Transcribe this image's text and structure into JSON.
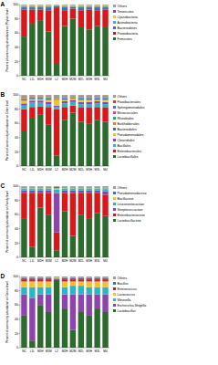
{
  "chart_data": [
    {
      "type": "bar",
      "stacked": true,
      "legend": "right",
      "title": "A",
      "y_label": "Percent of community abundance on Phylum level",
      "categories": [
        "NC",
        "L1L",
        "M1H",
        "M1M",
        "L2",
        "M2H",
        "M2M",
        "M2L",
        "M3H",
        "M3L",
        "M4"
      ],
      "ylim": [
        0,
        100
      ],
      "yticks": [
        0,
        20,
        40,
        60,
        80,
        100
      ],
      "series": [
        {
          "name": "Firmicutes",
          "color": "#2d6a2d",
          "values": [
            55,
            73,
            78,
            62,
            18,
            70,
            80,
            68,
            65,
            70,
            68
          ]
        },
        {
          "name": "Proteobacteria",
          "color": "#d7191c",
          "values": [
            38,
            20,
            15,
            30,
            78,
            22,
            14,
            24,
            28,
            22,
            25
          ]
        },
        {
          "name": "Bacteroidetes",
          "color": "#3b6fb6",
          "values": [
            3,
            3,
            3,
            4,
            2,
            4,
            3,
            4,
            3,
            4,
            3
          ]
        },
        {
          "name": "Actinobacteria",
          "color": "#2bb5c8",
          "values": [
            2,
            2,
            2,
            2,
            1,
            2,
            1,
            2,
            2,
            2,
            2
          ]
        },
        {
          "name": "Cyanobacteria",
          "color": "#f2c12e",
          "values": [
            1,
            1,
            1,
            1,
            0.5,
            1,
            1,
            1,
            1,
            1,
            1
          ]
        },
        {
          "name": "Tenericutes",
          "color": "#8e44ad",
          "values": [
            0.5,
            0.5,
            0.5,
            0.5,
            0.3,
            0.5,
            0.5,
            0.5,
            0.5,
            0.5,
            0.5
          ]
        },
        {
          "name": "Others",
          "color": "#9e9e9e",
          "values": [
            0.5,
            0.5,
            0.5,
            0.5,
            0.2,
            0.5,
            0.5,
            0.5,
            0.5,
            0.5,
            0.5
          ]
        }
      ]
    },
    {
      "type": "bar",
      "stacked": true,
      "legend": "right",
      "title": "B",
      "y_label": "Percent of community abundance on Order level",
      "categories": [
        "NC",
        "L1L",
        "M1H",
        "M1M",
        "L2",
        "M2H",
        "M2M",
        "M2L",
        "M3H",
        "M3L",
        "M4"
      ],
      "ylim": [
        0,
        100
      ],
      "yticks": [
        0,
        20,
        40,
        60,
        80,
        100
      ],
      "series": [
        {
          "name": "Lactobacillales",
          "color": "#2d6a2d",
          "values": [
            50,
            68,
            72,
            58,
            15,
            65,
            75,
            62,
            60,
            65,
            62
          ]
        },
        {
          "name": "Enterobacterales",
          "color": "#d7191c",
          "values": [
            30,
            15,
            12,
            25,
            65,
            18,
            10,
            20,
            22,
            18,
            20
          ]
        },
        {
          "name": "Bacillales",
          "color": "#2bb5c8",
          "values": [
            5,
            6,
            5,
            4,
            3,
            5,
            5,
            5,
            5,
            5,
            5
          ]
        },
        {
          "name": "Clostridiales",
          "color": "#8e44ad",
          "values": [
            3,
            3,
            3,
            3,
            2,
            3,
            3,
            3,
            3,
            3,
            3
          ]
        },
        {
          "name": "Pseudomonadales",
          "color": "#f2c12e",
          "values": [
            4,
            2,
            2,
            3,
            8,
            2,
            2,
            3,
            3,
            2,
            3
          ]
        },
        {
          "name": "Bacteroidales",
          "color": "#3b6fb6",
          "values": [
            2,
            2,
            2,
            2,
            1,
            2,
            1,
            2,
            2,
            2,
            2
          ]
        },
        {
          "name": "Burkholderiales",
          "color": "#e67e22",
          "values": [
            2,
            1,
            1,
            2,
            2,
            1,
            1,
            1,
            1,
            1,
            1
          ]
        },
        {
          "name": "Rhizobiales",
          "color": "#27ae60",
          "values": [
            1,
            1,
            1,
            1,
            1,
            1,
            1,
            1,
            1,
            1,
            1
          ]
        },
        {
          "name": "Micrococcales",
          "color": "#e84393",
          "values": [
            1,
            1,
            0.5,
            1,
            0.5,
            1,
            0.5,
            1,
            1,
            1,
            1
          ]
        },
        {
          "name": "Sphingomonadales",
          "color": "#6c5ce7",
          "values": [
            0.5,
            0.5,
            0.5,
            0.5,
            0.5,
            0.5,
            0.5,
            0.5,
            0.5,
            0.5,
            0.5
          ]
        },
        {
          "name": "Flavobacteriales",
          "color": "#a0522d",
          "values": [
            0.5,
            0.3,
            0.5,
            0.3,
            0.5,
            0.3,
            0.5,
            0.3,
            0.3,
            0.3,
            0.3
          ]
        },
        {
          "name": "Others",
          "color": "#9e9e9e",
          "values": [
            1,
            0.2,
            0.5,
            0.2,
            1.5,
            1.2,
            0.5,
            1.2,
            1.2,
            1.2,
            1.2
          ]
        }
      ]
    },
    {
      "type": "bar",
      "stacked": true,
      "legend": "right",
      "title": "C",
      "y_label": "Percent of community abundance on Family level",
      "categories": [
        "NC",
        "L1L",
        "M1H",
        "M1M",
        "L2",
        "M2H",
        "M2M",
        "M2L",
        "M3H",
        "M3L",
        "M4"
      ],
      "ylim": [
        0,
        100
      ],
      "yticks": [
        0,
        20,
        40,
        60,
        80,
        100
      ],
      "series": [
        {
          "name": "Lactobacillaceae",
          "color": "#2d6a2d",
          "values": [
            55,
            15,
            70,
            60,
            10,
            65,
            30,
            60,
            55,
            62,
            58
          ]
        },
        {
          "name": "Enterobacteriaceae",
          "color": "#d7191c",
          "values": [
            35,
            75,
            20,
            30,
            25,
            25,
            60,
            30,
            35,
            28,
            30
          ]
        },
        {
          "name": "Streptococcaceae",
          "color": "#8e44ad",
          "values": [
            4,
            4,
            4,
            4,
            55,
            4,
            4,
            4,
            4,
            4,
            5
          ]
        },
        {
          "name": "Leuconostocaceae",
          "color": "#2bb5c8",
          "values": [
            3,
            3,
            3,
            3,
            5,
            3,
            3,
            3,
            3,
            3,
            3
          ]
        },
        {
          "name": "Bacillaceae",
          "color": "#f2c12e",
          "values": [
            1,
            1,
            1,
            1,
            2,
            1,
            1,
            1,
            1,
            1,
            1
          ]
        },
        {
          "name": "Pseudomonadaceae",
          "color": "#3b6fb6",
          "values": [
            1,
            1,
            1,
            1,
            2,
            1,
            1,
            1,
            1,
            1,
            1
          ]
        },
        {
          "name": "Others",
          "color": "#9e9e9e",
          "values": [
            1,
            1,
            1,
            1,
            1,
            1,
            1,
            1,
            1,
            1,
            2
          ]
        }
      ]
    },
    {
      "type": "bar",
      "stacked": true,
      "legend": "right",
      "title": "D",
      "y_label": "Percent of community abundance on Genus level",
      "categories": [
        "NC",
        "L1L",
        "M1H",
        "M1M",
        "L2",
        "M2H",
        "M2M",
        "M2L",
        "M3H",
        "M3L",
        "M4"
      ],
      "ylim": [
        0,
        100
      ],
      "yticks": [
        0,
        20,
        40,
        60,
        80,
        100
      ],
      "series": [
        {
          "name": "Lactobacillus",
          "color": "#2d6a2d",
          "values": [
            45,
            10,
            60,
            50,
            95,
            55,
            25,
            50,
            45,
            55,
            50
          ]
        },
        {
          "name": "Escherichia-Shigella",
          "color": "#8e44ad",
          "values": [
            30,
            60,
            15,
            25,
            2,
            20,
            50,
            25,
            30,
            20,
            25
          ]
        },
        {
          "name": "Weissella",
          "color": "#2bb5c8",
          "values": [
            10,
            15,
            10,
            10,
            1,
            10,
            12,
            12,
            10,
            10,
            10
          ]
        },
        {
          "name": "Lactococcus",
          "color": "#f2c12e",
          "values": [
            8,
            8,
            8,
            8,
            1,
            8,
            6,
            6,
            8,
            8,
            8
          ]
        },
        {
          "name": "Enterococcus",
          "color": "#d7191c",
          "values": [
            3,
            3,
            3,
            3,
            0.5,
            3,
            3,
            3,
            3,
            3,
            3
          ]
        },
        {
          "name": "Bacillus",
          "color": "#3b6fb6",
          "values": [
            2,
            2,
            2,
            2,
            0.3,
            2,
            2,
            2,
            2,
            2,
            2
          ]
        },
        {
          "name": "Others",
          "color": "#9e9e9e",
          "values": [
            2,
            2,
            2,
            2,
            0.2,
            2,
            2,
            2,
            2,
            2,
            2
          ]
        }
      ]
    }
  ]
}
